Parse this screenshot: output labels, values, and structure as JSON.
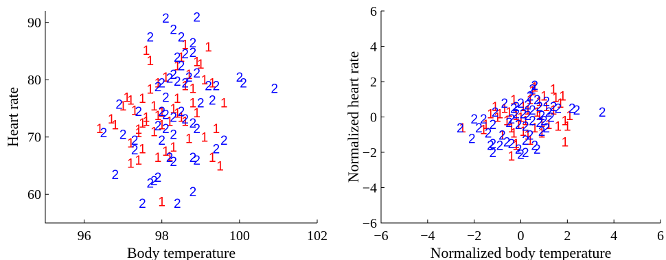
{
  "chart_data": [
    {
      "type": "scatter",
      "title": "",
      "xlabel": "Body temperature",
      "ylabel": "Heart rate",
      "xlim": [
        95,
        102
      ],
      "ylim": [
        55,
        92
      ],
      "xticks": [
        96,
        98,
        100,
        102
      ],
      "yticks": [
        60,
        70,
        80,
        90
      ],
      "grid": false,
      "marker_style": "text-digits",
      "colors": {
        "1": "#ff0000",
        "2": "#0000ff"
      },
      "series": [
        {
          "marker": "1",
          "points": [
            [
              96.4,
              71.5
            ],
            [
              96.8,
              72.2
            ],
            [
              97.1,
              77.0
            ],
            [
              97.0,
              75.5
            ],
            [
              97.2,
              76.5
            ],
            [
              96.7,
              73.2
            ],
            [
              97.5,
              76.8
            ],
            [
              97.6,
              72.8
            ],
            [
              97.3,
              74.7
            ],
            [
              97.8,
              75.5
            ],
            [
              97.5,
              72.5
            ],
            [
              97.4,
              71.4
            ],
            [
              97.2,
              69.0
            ],
            [
              97.4,
              70.8
            ],
            [
              97.6,
              73.5
            ],
            [
              97.9,
              73.8
            ],
            [
              98.0,
              74.4
            ],
            [
              97.8,
              71.0
            ],
            [
              98.2,
              72.8
            ],
            [
              98.4,
              74.2
            ],
            [
              98.0,
              72.2
            ],
            [
              98.3,
              75.0
            ],
            [
              97.7,
              78.4
            ],
            [
              97.9,
              79.5
            ],
            [
              97.7,
              83.4
            ],
            [
              97.6,
              85.2
            ],
            [
              98.1,
              80.5
            ],
            [
              98.4,
              82.5
            ],
            [
              98.6,
              79.0
            ],
            [
              98.8,
              78.5
            ],
            [
              98.7,
              81.0
            ],
            [
              98.5,
              84.0
            ],
            [
              98.6,
              86.2
            ],
            [
              98.9,
              83.2
            ],
            [
              99.0,
              82.8
            ],
            [
              99.2,
              85.8
            ],
            [
              99.1,
              80.0
            ],
            [
              99.3,
              79.5
            ],
            [
              99.6,
              76.0
            ],
            [
              99.4,
              71.5
            ],
            [
              99.1,
              70.0
            ],
            [
              98.9,
              74.3
            ],
            [
              98.6,
              72.8
            ],
            [
              98.3,
              68.3
            ],
            [
              98.2,
              66.6
            ],
            [
              98.1,
              67.6
            ],
            [
              97.9,
              66.5
            ],
            [
              97.5,
              68.0
            ],
            [
              97.4,
              66.0
            ],
            [
              97.2,
              65.5
            ],
            [
              98.0,
              58.8
            ],
            [
              98.5,
              73.5
            ],
            [
              98.8,
              76.0
            ],
            [
              99.3,
              66.5
            ],
            [
              99.5,
              65.0
            ],
            [
              98.4,
              76.8
            ],
            [
              98.7,
              69.8
            ]
          ]
        },
        {
          "marker": "2",
          "points": [
            [
              96.5,
              70.8
            ],
            [
              96.9,
              75.8
            ],
            [
              97.0,
              70.5
            ],
            [
              97.3,
              69.5
            ],
            [
              97.3,
              67.8
            ],
            [
              96.8,
              63.5
            ],
            [
              97.7,
              62.0
            ],
            [
              97.8,
              62.4
            ],
            [
              97.9,
              63.0
            ],
            [
              97.5,
              58.5
            ],
            [
              98.4,
              58.5
            ],
            [
              98.8,
              60.5
            ],
            [
              98.1,
              90.8
            ],
            [
              98.9,
              91.0
            ],
            [
              97.7,
              87.5
            ],
            [
              98.3,
              88.8
            ],
            [
              98.5,
              87.5
            ],
            [
              98.8,
              86.5
            ],
            [
              98.4,
              84.0
            ],
            [
              98.6,
              84.6
            ],
            [
              98.8,
              84.8
            ],
            [
              98.5,
              82.5
            ],
            [
              98.3,
              81.0
            ],
            [
              98.2,
              80.3
            ],
            [
              98.0,
              79.5
            ],
            [
              98.7,
              80.5
            ],
            [
              98.9,
              81.2
            ],
            [
              98.6,
              79.5
            ],
            [
              98.4,
              79.8
            ],
            [
              97.9,
              78.8
            ],
            [
              98.1,
              77.0
            ],
            [
              98.3,
              73.5
            ],
            [
              98.5,
              74.5
            ],
            [
              98.6,
              73.2
            ],
            [
              98.8,
              72.5
            ],
            [
              98.9,
              71.5
            ],
            [
              99.2,
              79.0
            ],
            [
              99.4,
              79.0
            ],
            [
              99.0,
              76.0
            ],
            [
              98.0,
              74.5
            ],
            [
              97.9,
              72.0
            ],
            [
              98.1,
              71.5
            ],
            [
              98.3,
              70.5
            ],
            [
              98.0,
              69.5
            ],
            [
              98.3,
              65.8
            ],
            [
              98.2,
              66.5
            ],
            [
              98.8,
              66.5
            ],
            [
              98.9,
              66.0
            ],
            [
              99.3,
              76.5
            ],
            [
              99.6,
              69.5
            ],
            [
              99.4,
              68.0
            ],
            [
              100.0,
              80.5
            ],
            [
              100.1,
              79.5
            ],
            [
              100.9,
              78.5
            ],
            [
              98.1,
              74.0
            ],
            [
              97.4,
              74.5
            ]
          ]
        }
      ]
    },
    {
      "type": "scatter",
      "title": "",
      "xlabel": "Normalized body temperature",
      "ylabel": "Normalized heart rate",
      "xlim": [
        -6,
        6
      ],
      "ylim": [
        -6,
        6
      ],
      "xticks": [
        -6,
        -4,
        -2,
        0,
        2,
        4,
        6
      ],
      "yticks": [
        -6,
        -4,
        -2,
        0,
        2,
        4,
        6
      ],
      "grid": false,
      "marker_style": "text-digits",
      "colors": {
        "1": "#ff0000",
        "2": "#0000ff"
      },
      "series": [
        {
          "marker": "1",
          "points": [
            [
              -2.5,
              -0.6
            ],
            [
              -1.5,
              -0.4
            ],
            [
              -1.3,
              0.2
            ],
            [
              -1.1,
              0.6
            ],
            [
              -1.0,
              0.0
            ],
            [
              -0.7,
              0.5
            ],
            [
              -0.6,
              -0.2
            ],
            [
              -0.5,
              0.3
            ],
            [
              -0.4,
              -0.6
            ],
            [
              -0.3,
              -0.9
            ],
            [
              -0.2,
              0.1
            ],
            [
              -0.2,
              -1.6
            ],
            [
              -0.1,
              -0.4
            ],
            [
              0.0,
              0.0
            ],
            [
              0.1,
              0.6
            ],
            [
              0.2,
              -0.2
            ],
            [
              0.3,
              0.4
            ],
            [
              0.4,
              1.0
            ],
            [
              0.5,
              1.5
            ],
            [
              0.6,
              -0.6
            ],
            [
              0.7,
              0.3
            ],
            [
              0.8,
              0.9
            ],
            [
              0.9,
              -0.3
            ],
            [
              1.0,
              1.2
            ],
            [
              1.1,
              0.6
            ],
            [
              1.2,
              -0.4
            ],
            [
              1.4,
              0.4
            ],
            [
              1.5,
              1.1
            ],
            [
              1.6,
              -0.5
            ],
            [
              1.7,
              0.8
            ],
            [
              1.8,
              1.2
            ],
            [
              1.9,
              -0.2
            ],
            [
              2.0,
              -0.5
            ],
            [
              -0.4,
              -2.2
            ],
            [
              -0.2,
              -1.5
            ],
            [
              0.4,
              -1.3
            ],
            [
              -0.8,
              -1.0
            ],
            [
              -1.6,
              -0.7
            ],
            [
              2.1,
              0.1
            ],
            [
              1.9,
              -1.4
            ],
            [
              1.4,
              1.6
            ],
            [
              0.6,
              1.7
            ],
            [
              -0.9,
              0.2
            ],
            [
              -0.3,
              1.0
            ],
            [
              0.1,
              -0.8
            ],
            [
              0.9,
              -0.9
            ],
            [
              0.3,
              -1.0
            ],
            [
              0.8,
              0.1
            ]
          ]
        },
        {
          "marker": "2",
          "points": [
            [
              -2.6,
              -0.6
            ],
            [
              -2.1,
              -1.2
            ],
            [
              -2.0,
              -0.1
            ],
            [
              -1.8,
              -0.6
            ],
            [
              -1.6,
              -0.1
            ],
            [
              -1.4,
              -0.9
            ],
            [
              -1.2,
              -0.4
            ],
            [
              -1.2,
              -1.5
            ],
            [
              -1.3,
              -1.6
            ],
            [
              -1.2,
              -2.0
            ],
            [
              -0.9,
              -1.6
            ],
            [
              -0.8,
              -1.0
            ],
            [
              -0.6,
              -1.4
            ],
            [
              -0.5,
              -0.3
            ],
            [
              -0.4,
              -0.1
            ],
            [
              -0.3,
              0.5
            ],
            [
              -0.2,
              0.2
            ],
            [
              -0.1,
              -0.4
            ],
            [
              0.0,
              0.8
            ],
            [
              0.1,
              0.2
            ],
            [
              0.2,
              -0.5
            ],
            [
              0.3,
              0.7
            ],
            [
              0.4,
              1.2
            ],
            [
              0.5,
              1.6
            ],
            [
              0.6,
              1.8
            ],
            [
              0.7,
              1.0
            ],
            [
              0.8,
              0.6
            ],
            [
              0.9,
              0.1
            ],
            [
              1.0,
              -0.2
            ],
            [
              1.1,
              -0.6
            ],
            [
              1.2,
              0.3
            ],
            [
              1.4,
              0.6
            ],
            [
              1.6,
              0.5
            ],
            [
              2.2,
              0.5
            ],
            [
              2.4,
              0.4
            ],
            [
              3.5,
              0.3
            ],
            [
              -0.4,
              -1.5
            ],
            [
              -0.1,
              -1.8
            ],
            [
              0.2,
              -1.3
            ],
            [
              0.4,
              -1.0
            ],
            [
              0.6,
              -1.6
            ],
            [
              0.7,
              -1.8
            ],
            [
              0.9,
              -0.8
            ],
            [
              0.2,
              -2.0
            ],
            [
              0.0,
              -2.1
            ],
            [
              -1.1,
              0.3
            ],
            [
              0.5,
              -0.2
            ],
            [
              1.3,
              0.0
            ],
            [
              -0.7,
              0.8
            ],
            [
              0.3,
              0.1
            ],
            [
              0.8,
              -0.3
            ],
            [
              -0.2,
              0.6
            ],
            [
              1.1,
              0.9
            ],
            [
              0.5,
              0.4
            ]
          ]
        }
      ]
    }
  ]
}
